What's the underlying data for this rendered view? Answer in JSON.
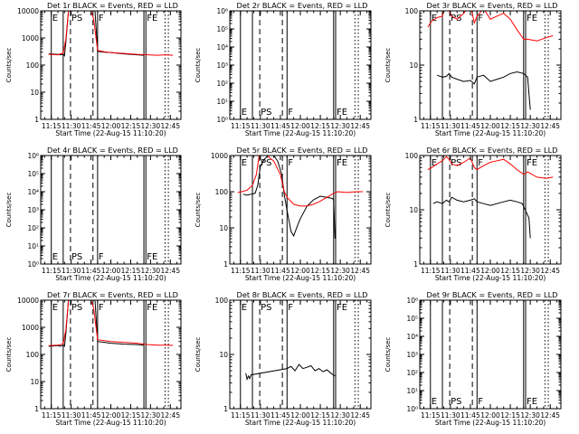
{
  "colors": {
    "events": "#000000",
    "lld": "#ff0000",
    "axes": "#000000",
    "background": "#ffffff"
  },
  "common": {
    "xlabel": "Start Time (22-Aug-15 11:10:20)",
    "ylabel": "Counts/sec",
    "x_ticks": [
      "11:15",
      "11:30",
      "11:45",
      "12:00",
      "12:15",
      "12:30",
      "12:45"
    ],
    "x_tick_minutes": [
      15,
      30,
      45,
      60,
      75,
      90,
      105
    ],
    "xlim_minutes": [
      7,
      113
    ],
    "markers": [
      {
        "minute": 15.0,
        "style": "solid",
        "label": "E"
      },
      {
        "minute": 24.0,
        "style": "solid",
        "label": ""
      },
      {
        "minute": 29.5,
        "style": "dashed",
        "label": "PS"
      },
      {
        "minute": 46.5,
        "style": "dashed",
        "label": ""
      },
      {
        "minute": 50.0,
        "style": "solid",
        "label": "F"
      },
      {
        "minute": 85.0,
        "style": "solid",
        "label": ""
      },
      {
        "minute": 86.5,
        "style": "solid",
        "label": "FE"
      },
      {
        "minute": 101.0,
        "style": "dotted",
        "label": ""
      },
      {
        "minute": 103.5,
        "style": "dotted",
        "label": ""
      }
    ]
  },
  "chart_data": [
    {
      "type": "line",
      "title": "Det 1r BLACK = Events, RED = LLD",
      "y_scale": "log",
      "ylim": [
        1,
        10000
      ],
      "y_ticks": [
        "1",
        "10",
        "100",
        "1000",
        "10000"
      ],
      "series": [
        {
          "name": "Events",
          "color": "black",
          "x": [
            13,
            20,
            22,
            24,
            25,
            26,
            28,
            30,
            33,
            36,
            40,
            43,
            45,
            48,
            50,
            55,
            60,
            70,
            80,
            85
          ],
          "y": [
            260,
            250,
            240,
            250,
            220,
            700,
            10000,
            10000,
            10000,
            10000,
            10000,
            10000,
            10000,
            10000,
            320,
            300,
            290,
            260,
            240,
            230
          ]
        },
        {
          "name": "LLD",
          "color": "red",
          "x": [
            13,
            20,
            22,
            24,
            26,
            28,
            30,
            33,
            36,
            40,
            43,
            45,
            47,
            50,
            55,
            60,
            70,
            80,
            88,
            95,
            102,
            107
          ],
          "y": [
            250,
            240,
            260,
            280,
            900,
            10000,
            10000,
            10000,
            10000,
            10000,
            10000,
            10000,
            5000,
            350,
            310,
            290,
            270,
            250,
            240,
            230,
            240,
            230
          ]
        }
      ]
    },
    {
      "type": "line",
      "title": "Det 2r BLACK = Events, RED = LLD",
      "y_scale": "log",
      "ylim": [
        1,
        1000000
      ],
      "y_ticks": [
        "10⁰",
        "10¹",
        "10²",
        "10³",
        "10⁴",
        "10⁵",
        "10⁶"
      ],
      "series": []
    },
    {
      "type": "line",
      "title": "Det 3r BLACK = Events, RED = LLD",
      "y_scale": "log",
      "ylim": [
        1,
        100
      ],
      "y_ticks": [
        "1",
        "10",
        "100"
      ],
      "series": [
        {
          "name": "Events",
          "color": "black",
          "x": [
            20,
            24,
            27,
            29,
            31,
            35,
            40,
            45,
            48,
            50,
            55,
            60,
            65,
            70,
            75,
            80,
            85,
            88,
            90
          ],
          "y": [
            6.5,
            6.0,
            6.2,
            7.0,
            6.0,
            5.5,
            5.0,
            5.2,
            4.5,
            6.0,
            6.5,
            5.0,
            5.5,
            6.0,
            7.0,
            7.5,
            7.0,
            6.0,
            1.5
          ]
        },
        {
          "name": "LLD",
          "color": "red",
          "x": [
            13,
            16,
            20,
            24,
            27,
            29,
            31,
            35,
            40,
            45,
            48,
            50,
            55,
            60,
            65,
            70,
            75,
            80,
            85,
            88,
            95,
            102,
            107
          ],
          "y": [
            50,
            65,
            75,
            80,
            140,
            100,
            80,
            70,
            90,
            130,
            60,
            80,
            110,
            70,
            80,
            90,
            70,
            45,
            30,
            30,
            28,
            32,
            35
          ]
        }
      ]
    },
    {
      "type": "line",
      "title": "Det 4r BLACK = Events, RED = LLD",
      "y_scale": "log",
      "ylim": [
        1,
        1000000
      ],
      "y_ticks": [
        "10⁰",
        "10¹",
        "10²",
        "10³",
        "10⁴",
        "10⁵",
        "10⁶"
      ],
      "series": []
    },
    {
      "type": "line",
      "title": "Det 5r BLACK = Events, RED = LLD",
      "y_scale": "log",
      "ylim": [
        1,
        1000
      ],
      "y_ticks": [
        "1",
        "10",
        "100",
        "1000"
      ],
      "series": [
        {
          "name": "Events",
          "color": "black",
          "x": [
            17,
            20,
            23,
            26,
            28,
            30,
            33,
            36,
            40,
            43,
            46,
            48,
            50,
            53,
            55,
            58,
            60,
            65,
            70,
            75,
            80,
            84,
            85,
            86
          ],
          "y": [
            85,
            80,
            85,
            90,
            150,
            500,
            800,
            1000,
            1000,
            700,
            300,
            80,
            30,
            8,
            6,
            12,
            18,
            40,
            60,
            75,
            70,
            65,
            60,
            5
          ]
        },
        {
          "name": "LLD",
          "color": "red",
          "x": [
            13,
            16,
            20,
            24,
            27,
            29,
            31,
            35,
            40,
            45,
            48,
            50,
            55,
            60,
            65,
            70,
            75,
            80,
            85,
            88,
            95,
            102,
            107
          ],
          "y": [
            95,
            100,
            110,
            150,
            300,
            1000,
            1000,
            1000,
            700,
            300,
            100,
            70,
            45,
            40,
            40,
            45,
            55,
            70,
            90,
            100,
            95,
            100,
            100
          ]
        }
      ]
    },
    {
      "type": "line",
      "title": "Det 6r BLACK = Events, RED = LLD",
      "y_scale": "log",
      "ylim": [
        1,
        100
      ],
      "y_ticks": [
        "1",
        "10",
        "100"
      ],
      "series": [
        {
          "name": "Events",
          "color": "black",
          "x": [
            17,
            20,
            24,
            27,
            29,
            31,
            35,
            40,
            45,
            48,
            50,
            55,
            60,
            65,
            70,
            75,
            80,
            84,
            87,
            89,
            90
          ],
          "y": [
            13,
            14,
            13,
            15,
            14,
            17,
            15,
            14,
            15,
            16,
            14,
            13,
            12,
            13,
            14,
            15,
            14,
            13,
            9,
            7,
            3
          ]
        },
        {
          "name": "LLD",
          "color": "red",
          "x": [
            13,
            16,
            20,
            24,
            27,
            29,
            31,
            35,
            40,
            45,
            48,
            50,
            55,
            60,
            65,
            70,
            75,
            80,
            85,
            88,
            95,
            102,
            107
          ],
          "y": [
            55,
            60,
            70,
            80,
            95,
            85,
            70,
            65,
            75,
            90,
            60,
            55,
            65,
            75,
            80,
            85,
            70,
            55,
            45,
            50,
            40,
            38,
            40
          ]
        }
      ]
    },
    {
      "type": "line",
      "title": "Det 7r BLACK = Events, RED = LLD",
      "y_scale": "log",
      "ylim": [
        1,
        10000
      ],
      "y_ticks": [
        "1",
        "10",
        "100",
        "1000",
        "10000"
      ],
      "series": [
        {
          "name": "Events",
          "color": "black",
          "x": [
            13,
            20,
            22,
            24,
            25,
            26,
            28,
            30,
            33,
            36,
            40,
            43,
            45,
            48,
            50,
            55,
            60,
            70,
            80,
            85
          ],
          "y": [
            200,
            210,
            200,
            220,
            200,
            600,
            10000,
            10000,
            10000,
            10000,
            10000,
            10000,
            10000,
            10000,
            300,
            280,
            260,
            240,
            230,
            220
          ]
        },
        {
          "name": "LLD",
          "color": "red",
          "x": [
            13,
            20,
            22,
            24,
            26,
            28,
            30,
            33,
            36,
            40,
            43,
            45,
            47,
            50,
            55,
            60,
            70,
            80,
            88,
            95,
            102,
            107
          ],
          "y": [
            210,
            220,
            230,
            250,
            800,
            10000,
            10000,
            10000,
            10000,
            10000,
            10000,
            10000,
            5000,
            350,
            320,
            300,
            280,
            260,
            230,
            220,
            220,
            215
          ]
        }
      ]
    },
    {
      "type": "line",
      "title": "Det 8r BLACK = Events, RED = LLD",
      "y_scale": "log",
      "ylim": [
        1,
        100
      ],
      "y_ticks": [
        "1",
        "10",
        "100"
      ],
      "series": [
        {
          "name": "Events",
          "color": "black",
          "x": [
            19,
            20,
            21,
            22,
            23,
            50,
            53,
            56,
            59,
            62,
            65,
            68,
            71,
            74,
            77,
            80,
            83,
            86
          ],
          "y": [
            4.5,
            3.5,
            4.0,
            3.6,
            4.2,
            5.5,
            6.0,
            5.0,
            6.5,
            5.5,
            5.8,
            6.2,
            5.0,
            5.5,
            4.8,
            5.2,
            4.5,
            4.0
          ]
        }
      ]
    },
    {
      "type": "line",
      "title": "Det 9r BLACK = Events, RED = LLD",
      "y_scale": "log",
      "ylim": [
        1,
        1000000
      ],
      "y_ticks": [
        "10⁰",
        "10¹",
        "10²",
        "10³",
        "10⁴",
        "10⁵",
        "10⁶"
      ],
      "series": []
    }
  ]
}
